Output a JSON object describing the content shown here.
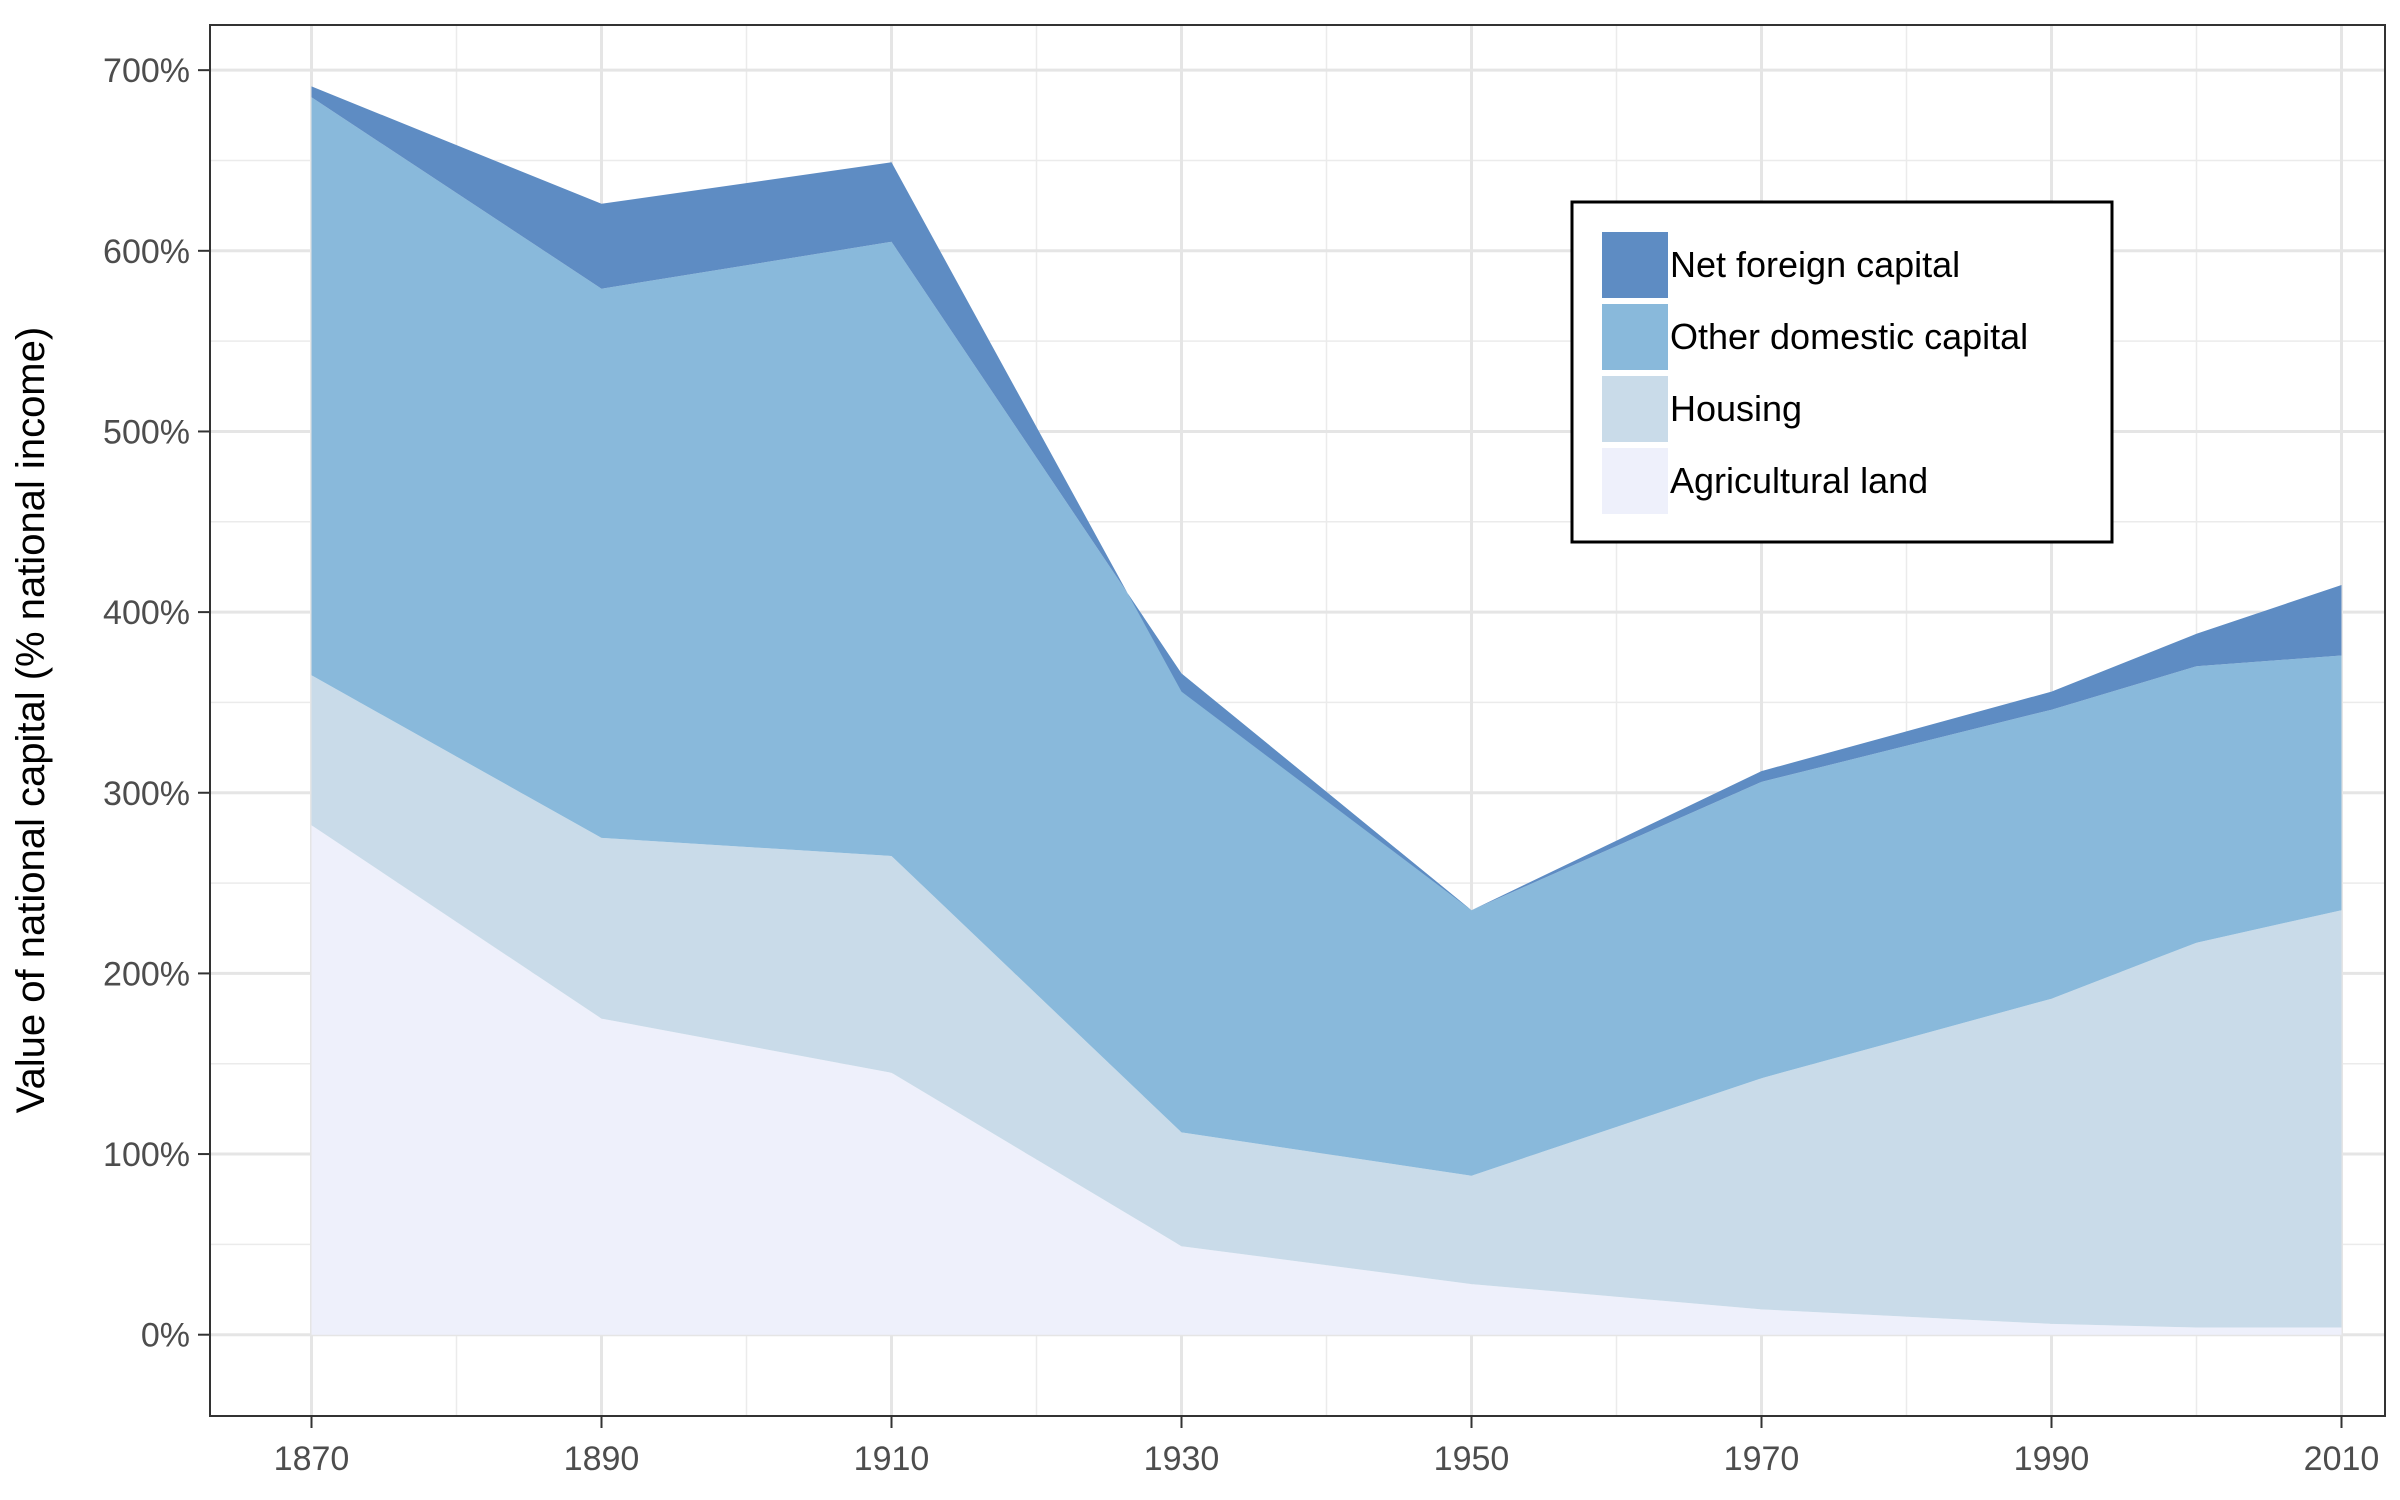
{
  "chart_data": {
    "type": "area",
    "stacked": true,
    "title": "",
    "xlabel": "",
    "ylabel": "Value of national capital (% national income)",
    "x": [
      1870,
      1890,
      1910,
      1930,
      1950,
      1970,
      1990,
      2000,
      2010
    ],
    "xticks": [
      "1870",
      "1890",
      "1910",
      "1930",
      "1950",
      "1970",
      "1990",
      "2010"
    ],
    "yticks": [
      "0%",
      "100%",
      "200%",
      "300%",
      "400%",
      "500%",
      "600%",
      "700%"
    ],
    "xlim": [
      1863,
      2013
    ],
    "ylim": [
      -45,
      725
    ],
    "grid": true,
    "legend_position": "top-right",
    "series": [
      {
        "name": "Agricultural land",
        "color": "#eef0fb",
        "values": [
          282,
          175,
          145,
          49,
          28,
          14,
          6,
          4,
          4
        ]
      },
      {
        "name": "Housing",
        "color": "#c9dbe9",
        "values": [
          83,
          100,
          120,
          63,
          60,
          128,
          180,
          213,
          231
        ]
      },
      {
        "name": "Other domestic capital",
        "color": "#89b9db",
        "values": [
          320,
          304,
          340,
          254,
          147,
          164,
          160,
          153,
          141
        ]
      },
      {
        "name": "Net foreign capital",
        "color": "#5e8cc3",
        "values": [
          6,
          47,
          44,
          -10,
          0,
          6,
          10,
          18,
          39
        ]
      }
    ]
  }
}
